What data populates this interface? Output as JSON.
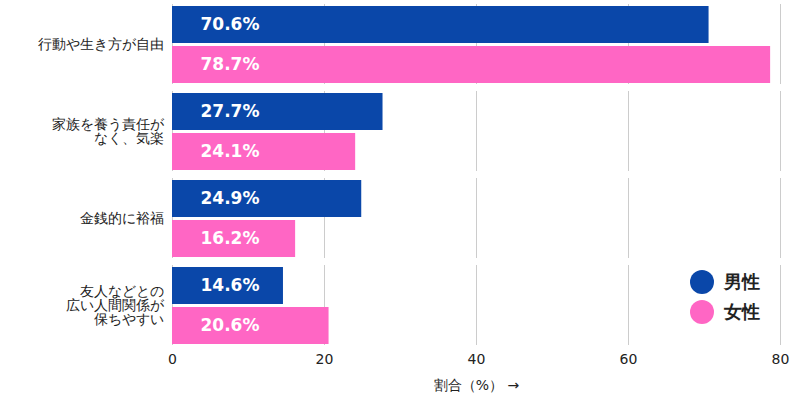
{
  "chart_data": {
    "type": "bar",
    "orientation": "horizontal",
    "categories": [
      "行動や生き方が自由",
      "家族を養う責任が\nなく、気楽",
      "金銭的に裕福",
      "友人などとの\n広い人間関係が\n保ちやすい"
    ],
    "series": [
      {
        "name": "男性",
        "color": "#0a47a9",
        "values": [
          70.6,
          27.7,
          24.9,
          14.6
        ],
        "value_labels": [
          "70.6%",
          "27.7%",
          "24.9%",
          "14.6%"
        ]
      },
      {
        "name": "女性",
        "color": "#ff66c4",
        "values": [
          78.7,
          24.1,
          16.2,
          20.6
        ],
        "value_labels": [
          "78.7%",
          "24.1%",
          "16.2%",
          "20.6%"
        ]
      }
    ],
    "x_label": "割合（%）",
    "xlim": [
      0,
      80
    ],
    "xticks": [
      0,
      20,
      40,
      60,
      80
    ],
    "grid": true,
    "data_labels": true,
    "legend": "bottom-right"
  }
}
